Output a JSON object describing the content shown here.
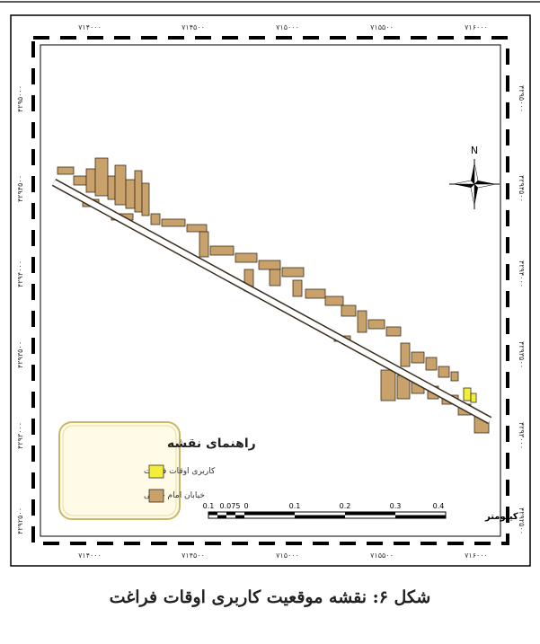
{
  "map": {
    "x_ticks_top": [
      "۷۱۴۰۰۰",
      "۷۱۴۵۰۰",
      "۷۱۵۰۰۰",
      "۷۱۵۵۰۰",
      "۷۱۶۰۰۰"
    ],
    "x_ticks_bottom": [
      "۷۱۴۰۰۰",
      "۷۱۴۵۰۰",
      "۷۱۵۰۰۰",
      "۷۱۵۵۰۰",
      "۷۱۶۰۰۰"
    ],
    "y_ticks_left": [
      "۴۲۹۵۰۰۰",
      "۴۲۹۴۵۰۰",
      "۴۲۹۴۰۰۰",
      "۴۲۹۳۵۰۰",
      "۴۲۹۳۰۰۰",
      "۴۲۹۲۵۰۰"
    ],
    "y_ticks_right": [
      "۴۲۹۵۰۰۰",
      "۴۲۹۴۵۰۰",
      "۴۲۹۴۰۰۰",
      "۴۲۹۳۵۰۰",
      "۴۲۹۳۰۰۰",
      "۴۲۹۲۵۰۰"
    ],
    "north_label": "N",
    "legend": {
      "title": "راهنمای نقشه",
      "items": [
        {
          "label": "کاربری اوقات فراغت",
          "color": "#f2ef3c"
        },
        {
          "label": "خیابان امام خمینی",
          "color": "#c9a16a"
        }
      ]
    },
    "scale_bar": {
      "labels": [
        "0.1",
        "0.075",
        "0",
        "0.1",
        "0.2",
        "0.3",
        "0.4"
      ],
      "unit": "کیلومتر"
    },
    "colors": {
      "parcels": "#c9a16a",
      "leisure": "#f2ef3c",
      "street": "#ffffff",
      "outline": "#3a2e1e"
    }
  },
  "caption": "شکل ۶: نقشه موقعیت کاربری اوقات فراغت"
}
